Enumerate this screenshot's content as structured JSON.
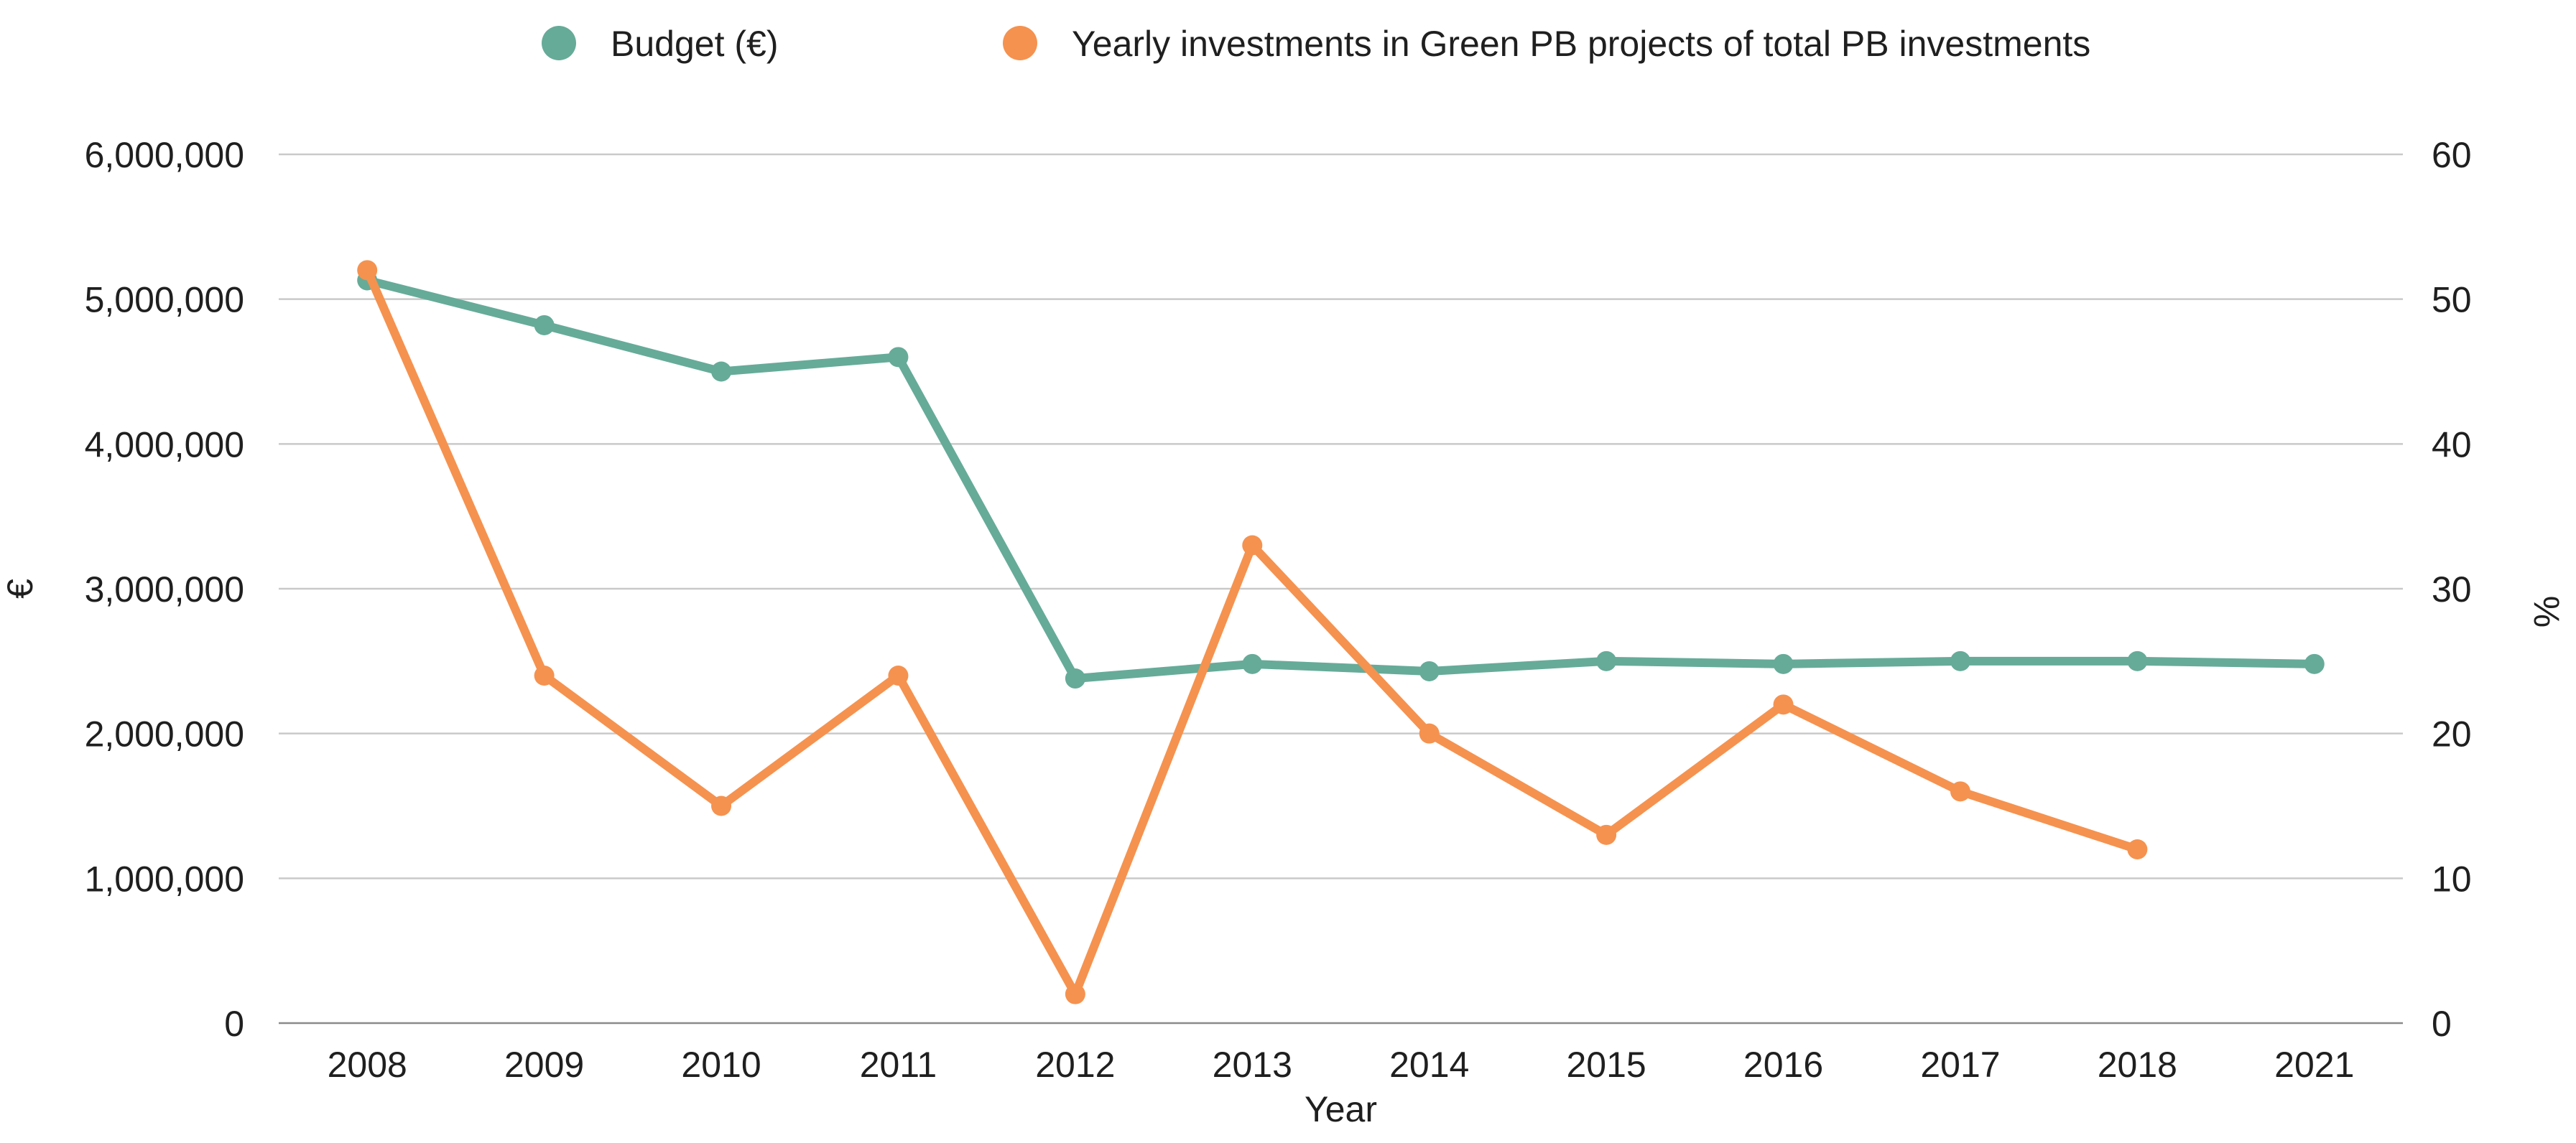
{
  "chart_data": {
    "type": "line",
    "title": "",
    "xlabel": "Year",
    "ylabel_left": "€",
    "ylabel_right": "%",
    "categories": [
      "2008",
      "2009",
      "2010",
      "2011",
      "2012",
      "2013",
      "2014",
      "2015",
      "2016",
      "2017",
      "2018",
      "2021"
    ],
    "y_left_range": [
      0,
      6000000
    ],
    "y_left_ticks": [
      "0",
      "1,000,000",
      "2,000,000",
      "3,000,000",
      "4,000,000",
      "5,000,000",
      "6,000,000"
    ],
    "y_right_range": [
      0,
      60
    ],
    "y_right_ticks": [
      "0",
      "10",
      "20",
      "30",
      "40",
      "50",
      "60"
    ],
    "grid": true,
    "legend_position": "top-center",
    "series": [
      {
        "name": "Budget (€)",
        "axis": "left",
        "color": "#66ab98",
        "values": [
          5130000,
          4820000,
          4500000,
          4600000,
          2380000,
          2480000,
          2430000,
          2500000,
          2480000,
          2500000,
          2500000,
          2480000
        ]
      },
      {
        "name": "Yearly investments in Green PB projects of total PB investments",
        "axis": "right",
        "color": "#f5924f",
        "values": [
          52,
          24,
          15,
          24,
          2,
          33,
          20,
          13,
          22,
          16,
          12,
          null
        ]
      }
    ]
  }
}
